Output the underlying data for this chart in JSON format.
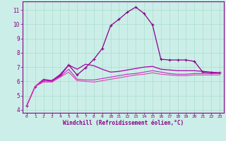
{
  "xlabel": "Windchill (Refroidissement éolien,°C)",
  "background_color": "#cceee8",
  "grid_color": "#aaddcc",
  "x": [
    0,
    1,
    2,
    3,
    4,
    5,
    6,
    7,
    8,
    9,
    10,
    11,
    12,
    13,
    14,
    15,
    16,
    17,
    18,
    19,
    20,
    21,
    22,
    23
  ],
  "y_main": [
    4.3,
    5.65,
    6.05,
    6.05,
    6.4,
    7.15,
    6.45,
    6.95,
    7.55,
    8.3,
    9.9,
    10.35,
    10.85,
    11.2,
    10.75,
    9.95,
    7.55,
    7.5,
    7.5,
    7.5,
    7.4,
    6.65,
    6.6,
    6.6
  ],
  "y_upper": [
    4.3,
    5.65,
    6.15,
    6.05,
    6.5,
    7.15,
    6.85,
    7.2,
    7.1,
    6.85,
    6.65,
    6.7,
    6.8,
    6.9,
    7.0,
    7.05,
    6.85,
    6.8,
    6.75,
    6.75,
    6.75,
    6.7,
    6.65,
    6.6
  ],
  "y_mid": [
    4.3,
    5.65,
    6.05,
    6.0,
    6.35,
    6.85,
    6.15,
    6.1,
    6.1,
    6.2,
    6.3,
    6.4,
    6.5,
    6.55,
    6.65,
    6.75,
    6.65,
    6.55,
    6.5,
    6.5,
    6.55,
    6.55,
    6.55,
    6.55
  ],
  "y_lower": [
    4.3,
    5.65,
    5.95,
    5.95,
    6.3,
    6.65,
    6.05,
    6.0,
    5.95,
    6.05,
    6.15,
    6.25,
    6.35,
    6.45,
    6.5,
    6.6,
    6.5,
    6.45,
    6.4,
    6.4,
    6.45,
    6.45,
    6.45,
    6.45
  ],
  "ylim": [
    3.8,
    11.6
  ],
  "yticks": [
    4,
    5,
    6,
    7,
    8,
    9,
    10,
    11
  ],
  "xticks": [
    0,
    1,
    2,
    3,
    4,
    5,
    6,
    7,
    8,
    9,
    10,
    11,
    12,
    13,
    14,
    15,
    16,
    17,
    18,
    19,
    20,
    21,
    22,
    23
  ],
  "color_main": "#880088",
  "color_upper": "#aa00aa",
  "color_mid": "#cc22cc",
  "color_lower": "#dd44aa",
  "spine_color": "#880088",
  "tick_color": "#880088",
  "label_color": "#880088"
}
